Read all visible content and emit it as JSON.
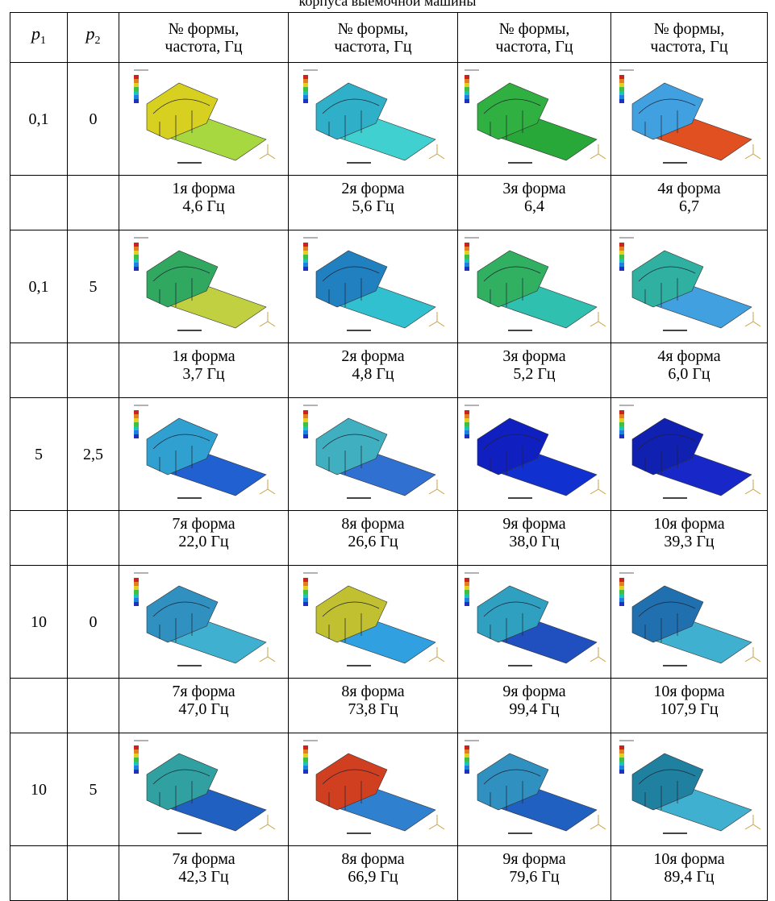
{
  "caption": "корпуса выемочной машины",
  "table": {
    "header": {
      "p1": {
        "symbol": "p",
        "index": "1"
      },
      "p2": {
        "symbol": "p",
        "index": "2"
      },
      "modes": [
        [
          "№ формы,",
          "частота, Гц"
        ],
        [
          "№ формы,",
          "частота, Гц"
        ],
        [
          "№ формы,",
          "частота, Гц"
        ],
        [
          "№ формы,",
          "частота, Гц"
        ]
      ]
    },
    "rows": [
      {
        "p1": "0,1",
        "p2": "0",
        "modes": [
          [
            "1я форма",
            "4,6 Гц"
          ],
          [
            "2я форма",
            "5,6 Гц"
          ],
          [
            "3я форма",
            "6,4"
          ],
          [
            "4я форма",
            "6,7"
          ]
        ]
      },
      {
        "p1": "0,1",
        "p2": "5",
        "modes": [
          [
            "1я форма",
            "3,7 Гц"
          ],
          [
            "2я форма",
            "4,8 Гц"
          ],
          [
            "3я форма",
            "5,2 Гц"
          ],
          [
            "4я форма",
            "6,0 Гц"
          ]
        ]
      },
      {
        "p1": "5",
        "p2": "2,5",
        "modes": [
          [
            "7я форма",
            "22,0 Гц"
          ],
          [
            "8я форма",
            "26,6 Гц"
          ],
          [
            "9я форма",
            "38,0 Гц"
          ],
          [
            "10я форма",
            "39,3 Гц"
          ]
        ]
      },
      {
        "p1": "10",
        "p2": "0",
        "modes": [
          [
            "7я форма",
            "47,0 Гц"
          ],
          [
            "8я форма",
            "73,8 Гц"
          ],
          [
            "9я форма",
            "99,4 Гц"
          ],
          [
            "10я форма",
            "107,9 Гц"
          ]
        ]
      },
      {
        "p1": "10",
        "p2": "5",
        "modes": [
          [
            "7я форма",
            "42,3 Гц"
          ],
          [
            "8я форма",
            "66,9 Гц"
          ],
          [
            "9я форма",
            "79,6 Гц"
          ],
          [
            "10я форма",
            "89,4 Гц"
          ]
        ]
      }
    ]
  }
}
